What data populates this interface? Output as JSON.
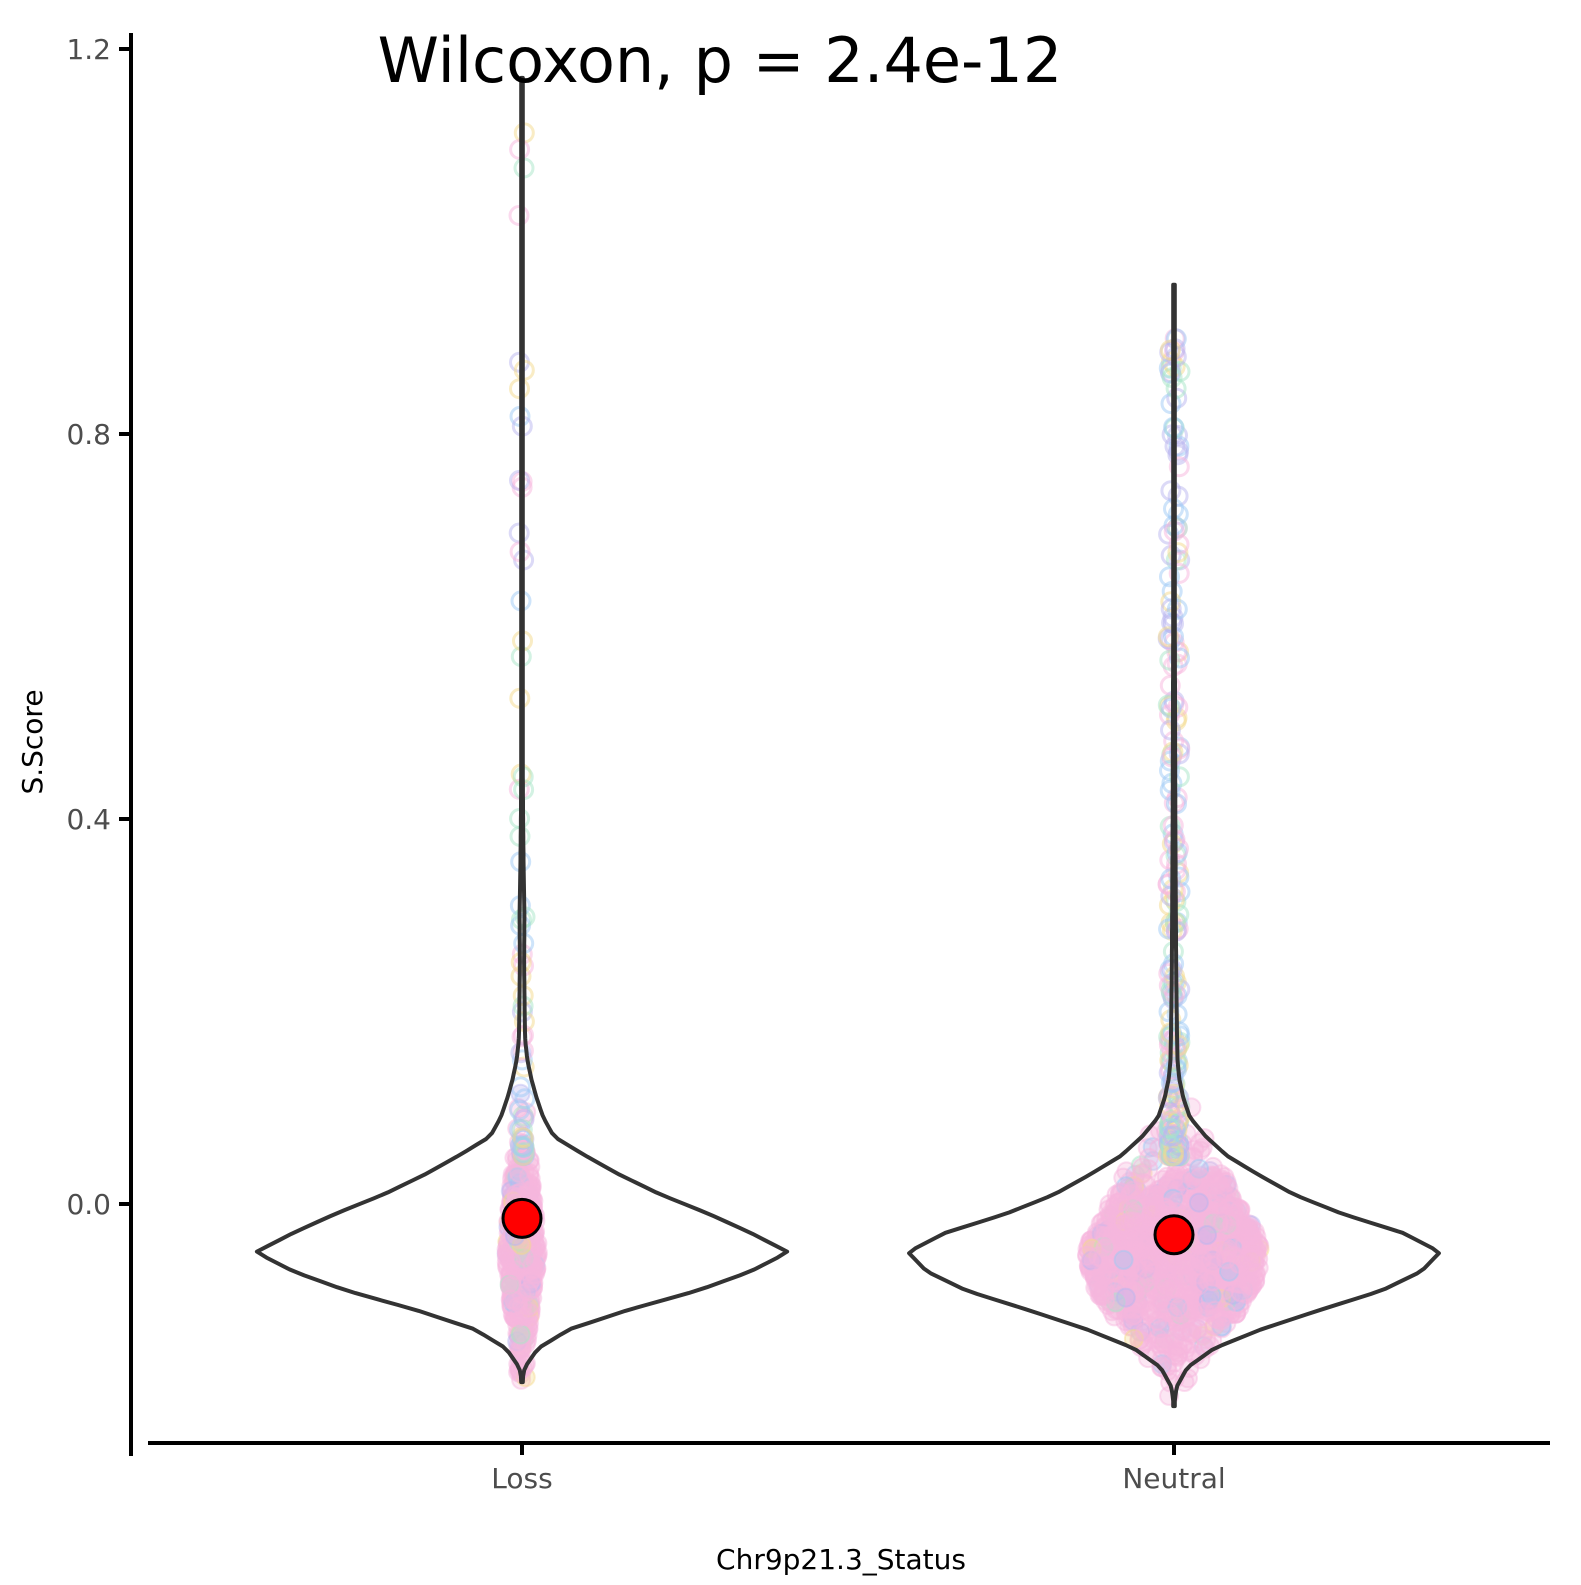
{
  "chart_data": {
    "type": "violin",
    "annotation": "Wilcoxon, p = 2.4e-12",
    "xlabel": "Chr9p21.3_Status",
    "ylabel": "S.Score",
    "categories": [
      "Loss",
      "Neutral"
    ],
    "y_ticks": [
      0.0,
      0.4,
      0.8,
      1.2
    ],
    "y_tick_labels": [
      "0.0",
      "0.4",
      "0.8",
      "1.2"
    ],
    "ylim": [
      -0.26,
      1.26
    ],
    "grid": false,
    "legend": "none",
    "colors": {
      "violin_outline": "#333333",
      "mean_point": "#ff0000",
      "jitter_main": "#f7b6de",
      "jitter_alt": [
        "#f7b6de",
        "#9ec9f5",
        "#a8e6c8",
        "#f3d98c",
        "#b9b5f0"
      ]
    },
    "series": [
      {
        "category": "Loss",
        "mean": -0.015,
        "min": -0.185,
        "max": 1.17,
        "peak": -0.05,
        "density_profile": [
          [
            -0.185,
            0.0
          ],
          [
            -0.17,
            0.01
          ],
          [
            -0.15,
            0.06
          ],
          [
            -0.13,
            0.18
          ],
          [
            -0.11,
            0.4
          ],
          [
            -0.09,
            0.66
          ],
          [
            -0.07,
            0.86
          ],
          [
            -0.05,
            1.0
          ],
          [
            -0.03,
            0.86
          ],
          [
            -0.01,
            0.7
          ],
          [
            0.01,
            0.52
          ],
          [
            0.03,
            0.37
          ],
          [
            0.05,
            0.24
          ],
          [
            0.07,
            0.12
          ],
          [
            0.09,
            0.08
          ],
          [
            0.11,
            0.055
          ],
          [
            0.13,
            0.035
          ],
          [
            0.15,
            0.02
          ],
          [
            0.17,
            0.012
          ],
          [
            0.2,
            0.01
          ],
          [
            0.25,
            0.008
          ],
          [
            0.3,
            0.009
          ],
          [
            0.35,
            0.006
          ],
          [
            0.4,
            0.004
          ],
          [
            0.45,
            0.003
          ],
          [
            0.5,
            0.003
          ],
          [
            0.6,
            0.002
          ],
          [
            0.7,
            0.0015
          ],
          [
            0.8,
            0.001
          ],
          [
            0.9,
            0.001
          ],
          [
            1.0,
            0.0008
          ],
          [
            1.1,
            0.0006
          ],
          [
            1.17,
            0.0
          ]
        ]
      },
      {
        "category": "Neutral",
        "mean": -0.032,
        "min": -0.21,
        "max": 0.955,
        "peak": -0.05,
        "density_profile": [
          [
            -0.21,
            0.0
          ],
          [
            -0.19,
            0.01
          ],
          [
            -0.17,
            0.05
          ],
          [
            -0.15,
            0.15
          ],
          [
            -0.13,
            0.33
          ],
          [
            -0.11,
            0.55
          ],
          [
            -0.09,
            0.78
          ],
          [
            -0.07,
            0.93
          ],
          [
            -0.05,
            1.0
          ],
          [
            -0.03,
            0.86
          ],
          [
            -0.01,
            0.63
          ],
          [
            0.01,
            0.45
          ],
          [
            0.03,
            0.32
          ],
          [
            0.05,
            0.2
          ],
          [
            0.07,
            0.12
          ],
          [
            0.09,
            0.06
          ],
          [
            0.11,
            0.035
          ],
          [
            0.13,
            0.02
          ],
          [
            0.15,
            0.013
          ],
          [
            0.2,
            0.01
          ],
          [
            0.25,
            0.008
          ],
          [
            0.3,
            0.007
          ],
          [
            0.35,
            0.006
          ],
          [
            0.4,
            0.005
          ],
          [
            0.5,
            0.004
          ],
          [
            0.6,
            0.003
          ],
          [
            0.7,
            0.002
          ],
          [
            0.8,
            0.0015
          ],
          [
            0.9,
            0.001
          ],
          [
            0.955,
            0.0
          ]
        ]
      }
    ]
  }
}
